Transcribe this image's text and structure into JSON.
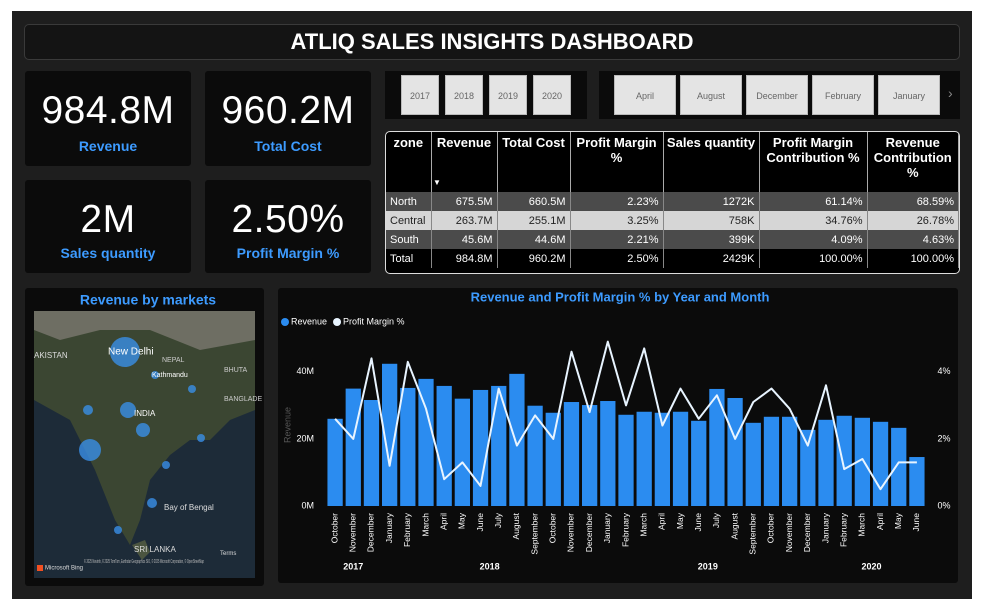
{
  "header": {
    "title": "ATLIQ SALES INSIGHTS DASHBOARD"
  },
  "kpis": [
    {
      "value": "984.8M",
      "label": "Revenue"
    },
    {
      "value": "960.2M",
      "label": "Total Cost"
    },
    {
      "value": "2M",
      "label": "Sales quantity"
    },
    {
      "value": "2.50%",
      "label": "Profit Margin %"
    }
  ],
  "year_slicer": [
    "2017",
    "2018",
    "2019",
    "2020"
  ],
  "month_slicer": [
    "April",
    "August",
    "December",
    "February",
    "January"
  ],
  "table": {
    "headers": [
      "zone",
      "Revenue",
      "Total Cost",
      "Profit Margin %",
      "Sales quantity",
      "Profit Margin Contribution %",
      "Revenue Contribution %"
    ],
    "rows": [
      [
        "North",
        "675.5M",
        "660.5M",
        "2.23%",
        "1272K",
        "61.14%",
        "68.59%"
      ],
      [
        "Central",
        "263.7M",
        "255.1M",
        "3.25%",
        "758K",
        "34.76%",
        "26.78%"
      ],
      [
        "South",
        "45.6M",
        "44.6M",
        "2.21%",
        "399K",
        "4.09%",
        "4.63%"
      ],
      [
        "Total",
        "984.8M",
        "960.2M",
        "2.50%",
        "2429K",
        "100.00%",
        "100.00%"
      ]
    ]
  },
  "map": {
    "title": "Revenue by markets",
    "labels": [
      "AKISTAN",
      "New Delhi",
      "NEPAL",
      "Kathmandu",
      "BHUTA",
      "INDIA",
      "BANGLADE",
      "Bay of Bengal",
      "SRI LANKA"
    ],
    "attribution": "© 2025 Navinfo, © 2025 TomTom, Earthstar Geographics SIO, © 2025 Microsoft Corporation, © OpenStreetMap",
    "terms": "Terms",
    "brand": "Microsoft Bing"
  },
  "chart_data": {
    "type": "bar_line",
    "title": "Revenue and Profit Margin % by Year and Month",
    "y_label": "Revenue",
    "categories": [
      "October",
      "November",
      "December",
      "January",
      "February",
      "March",
      "April",
      "May",
      "June",
      "July",
      "August",
      "September",
      "October",
      "November",
      "December",
      "January",
      "February",
      "March",
      "April",
      "May",
      "June",
      "July",
      "August",
      "September",
      "October",
      "November",
      "December",
      "January",
      "February",
      "March",
      "April",
      "May",
      "June"
    ],
    "year_labels": [
      "2017",
      "2018",
      "2019",
      "2020"
    ],
    "series": [
      {
        "name": "Revenue",
        "color": "#2b8cf0",
        "values": [
          26,
          35,
          31.6,
          42.4,
          35.2,
          37.9,
          35.8,
          32,
          34.6,
          35.8,
          39.4,
          29.9,
          27.8,
          31,
          30.1,
          31.3,
          27.2,
          28.1,
          27.8,
          28.1,
          25.4,
          34.9,
          32.2,
          24.8,
          26.6,
          26.6,
          22.7,
          25.7,
          26.9,
          26.3,
          25.1,
          23.3,
          14.6
        ]
      },
      {
        "name": "Profit Margin %",
        "color": "#e8f4ff",
        "axis": "y2",
        "values": [
          2.6,
          2.0,
          4.4,
          1.2,
          4.3,
          2.9,
          0.8,
          1.3,
          0.6,
          3.5,
          1.8,
          2.7,
          2.0,
          4.6,
          2.8,
          4.9,
          3.0,
          4.7,
          2.4,
          3.5,
          2.6,
          3.3,
          2.0,
          3.1,
          3.5,
          2.9,
          1.8,
          3.6,
          1.1,
          1.4,
          0.5,
          1.3,
          1.3
        ]
      }
    ],
    "ylim": [
      0,
      48
    ],
    "yticks": [
      {
        "value": 0,
        "label": "0M"
      },
      {
        "value": 20,
        "label": "20M"
      },
      {
        "value": 40,
        "label": "40M"
      }
    ],
    "y2lim": [
      0,
      4.8
    ],
    "y2ticks": [
      {
        "value": 0,
        "label": "0%"
      },
      {
        "value": 2,
        "label": "2%"
      },
      {
        "value": 4,
        "label": "4%"
      }
    ]
  }
}
